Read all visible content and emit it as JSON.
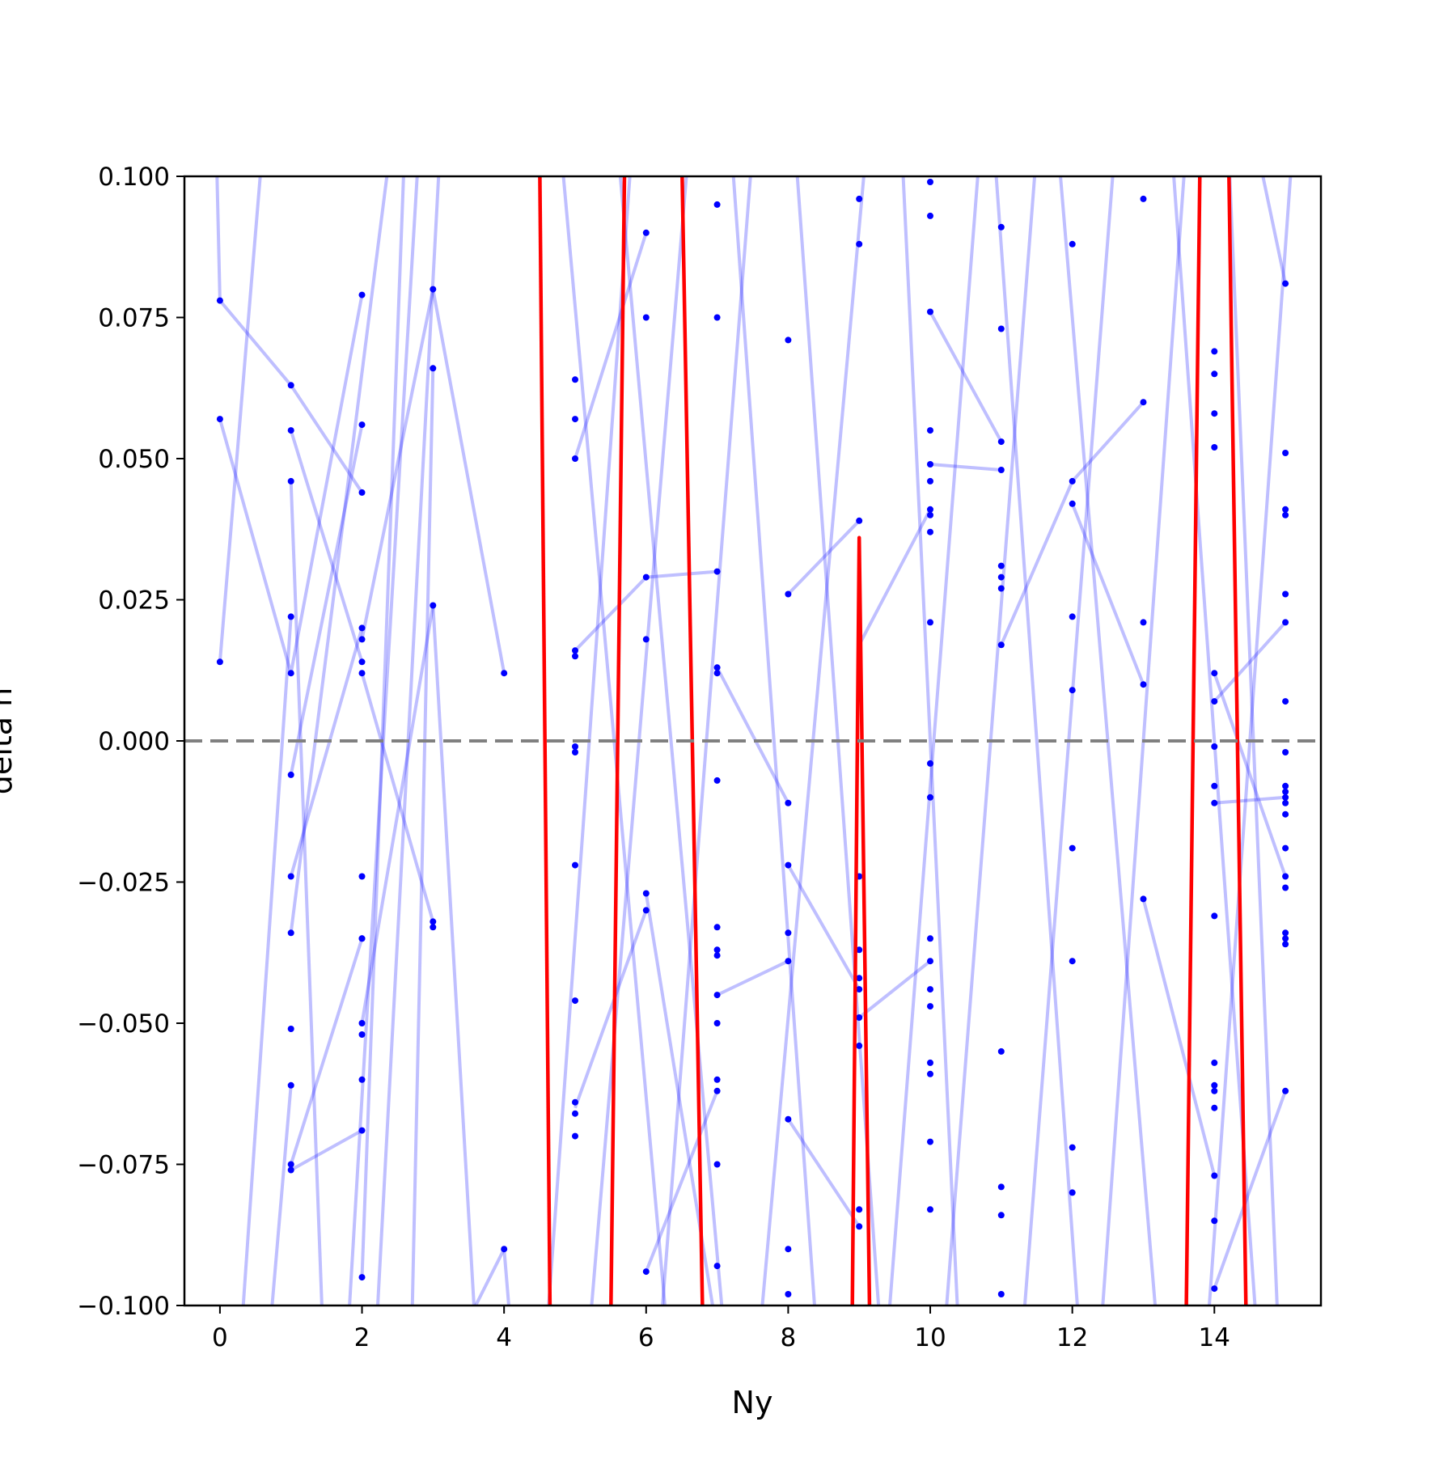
{
  "chart_data": {
    "type": "line",
    "xlabel": "Ny",
    "ylabel": "delta n",
    "xlim": [
      -0.5,
      15.5
    ],
    "ylim": [
      -0.1,
      0.1
    ],
    "x_ticks": [
      0,
      2,
      4,
      6,
      8,
      10,
      12,
      14
    ],
    "x_tick_labels": [
      "0",
      "2",
      "4",
      "6",
      "8",
      "10",
      "12",
      "14"
    ],
    "y_ticks": [
      0.1,
      0.075,
      0.05,
      0.025,
      0.0,
      -0.025,
      -0.05,
      -0.075,
      -0.1
    ],
    "y_tick_labels": [
      "0.100",
      "0.075",
      "0.050",
      "0.025",
      "0.000",
      "−0.025",
      "−0.050",
      "−0.075",
      "−0.100"
    ],
    "reference_line": {
      "y": 0.0,
      "style": "dashed",
      "color": "#808080"
    },
    "grid": false,
    "colors": {
      "points": "#0000ff",
      "lines": "#0000ff",
      "highlight": "#ff0000"
    },
    "points": [
      [
        0,
        0.078
      ],
      [
        0,
        0.057
      ],
      [
        0,
        0.014
      ],
      [
        1,
        0.063
      ],
      [
        1,
        0.055
      ],
      [
        1,
        0.046
      ],
      [
        1,
        0.022
      ],
      [
        1,
        0.012
      ],
      [
        1,
        -0.006
      ],
      [
        1,
        -0.024
      ],
      [
        1,
        -0.034
      ],
      [
        1,
        -0.051
      ],
      [
        1,
        -0.061
      ],
      [
        1,
        -0.075
      ],
      [
        1,
        -0.076
      ],
      [
        2,
        0.079
      ],
      [
        2,
        0.056
      ],
      [
        2,
        0.044
      ],
      [
        2,
        0.02
      ],
      [
        2,
        0.018
      ],
      [
        2,
        0.014
      ],
      [
        2,
        0.012
      ],
      [
        2,
        -0.024
      ],
      [
        2,
        -0.035
      ],
      [
        2,
        -0.035
      ],
      [
        2,
        -0.05
      ],
      [
        2,
        -0.052
      ],
      [
        2,
        -0.06
      ],
      [
        2,
        -0.069
      ],
      [
        2,
        -0.095
      ],
      [
        3,
        0.08
      ],
      [
        3,
        0.066
      ],
      [
        3,
        0.024
      ],
      [
        3,
        -0.032
      ],
      [
        3,
        -0.033
      ],
      [
        4,
        0.012
      ],
      [
        4,
        -0.09
      ],
      [
        5,
        0.064
      ],
      [
        5,
        0.057
      ],
      [
        5,
        0.05
      ],
      [
        5,
        0.016
      ],
      [
        5,
        0.015
      ],
      [
        5,
        -0.001
      ],
      [
        5,
        -0.002
      ],
      [
        5,
        -0.022
      ],
      [
        5,
        -0.046
      ],
      [
        5,
        -0.064
      ],
      [
        5,
        -0.066
      ],
      [
        5,
        -0.07
      ],
      [
        6,
        0.09
      ],
      [
        6,
        0.075
      ],
      [
        6,
        0.029
      ],
      [
        6,
        0.018
      ],
      [
        6,
        -0.027
      ],
      [
        6,
        -0.03
      ],
      [
        6,
        -0.094
      ],
      [
        7,
        0.095
      ],
      [
        7,
        0.075
      ],
      [
        7,
        0.03
      ],
      [
        7,
        0.013
      ],
      [
        7,
        0.012
      ],
      [
        7,
        -0.007
      ],
      [
        7,
        -0.033
      ],
      [
        7,
        -0.037
      ],
      [
        7,
        -0.038
      ],
      [
        7,
        -0.045
      ],
      [
        7,
        -0.05
      ],
      [
        7,
        -0.06
      ],
      [
        7,
        -0.062
      ],
      [
        7,
        -0.075
      ],
      [
        7,
        -0.093
      ],
      [
        8,
        0.071
      ],
      [
        8,
        0.026
      ],
      [
        8,
        -0.011
      ],
      [
        8,
        -0.022
      ],
      [
        8,
        -0.034
      ],
      [
        8,
        -0.039
      ],
      [
        8,
        -0.067
      ],
      [
        8,
        -0.09
      ],
      [
        8,
        -0.098
      ],
      [
        9,
        0.096
      ],
      [
        9,
        0.088
      ],
      [
        9,
        0.039
      ],
      [
        9,
        -0.024
      ],
      [
        9,
        -0.037
      ],
      [
        9,
        -0.042
      ],
      [
        9,
        -0.044
      ],
      [
        9,
        -0.049
      ],
      [
        9,
        -0.054
      ],
      [
        9,
        -0.083
      ],
      [
        9,
        -0.086
      ],
      [
        10,
        0.099
      ],
      [
        10,
        0.093
      ],
      [
        10,
        0.076
      ],
      [
        10,
        0.055
      ],
      [
        10,
        0.049
      ],
      [
        10,
        0.046
      ],
      [
        10,
        0.041
      ],
      [
        10,
        0.04
      ],
      [
        10,
        0.037
      ],
      [
        10,
        0.021
      ],
      [
        10,
        -0.004
      ],
      [
        10,
        -0.01
      ],
      [
        10,
        -0.035
      ],
      [
        10,
        -0.039
      ],
      [
        10,
        -0.044
      ],
      [
        10,
        -0.047
      ],
      [
        10,
        -0.057
      ],
      [
        10,
        -0.059
      ],
      [
        10,
        -0.071
      ],
      [
        10,
        -0.083
      ],
      [
        11,
        0.091
      ],
      [
        11,
        0.073
      ],
      [
        11,
        0.053
      ],
      [
        11,
        0.048
      ],
      [
        11,
        0.031
      ],
      [
        11,
        0.029
      ],
      [
        11,
        0.027
      ],
      [
        11,
        0.017
      ],
      [
        11,
        -0.055
      ],
      [
        11,
        -0.079
      ],
      [
        11,
        -0.084
      ],
      [
        11,
        -0.098
      ],
      [
        12,
        0.088
      ],
      [
        12,
        0.046
      ],
      [
        12,
        0.042
      ],
      [
        12,
        0.022
      ],
      [
        12,
        0.009
      ],
      [
        12,
        -0.019
      ],
      [
        12,
        -0.039
      ],
      [
        12,
        -0.072
      ],
      [
        12,
        -0.08
      ],
      [
        13,
        0.096
      ],
      [
        13,
        0.06
      ],
      [
        13,
        0.021
      ],
      [
        13,
        0.01
      ],
      [
        13,
        -0.028
      ],
      [
        14,
        0.069
      ],
      [
        14,
        0.065
      ],
      [
        14,
        0.058
      ],
      [
        14,
        0.052
      ],
      [
        14,
        0.012
      ],
      [
        14,
        0.007
      ],
      [
        14,
        -0.001
      ],
      [
        14,
        -0.008
      ],
      [
        14,
        -0.011
      ],
      [
        14,
        -0.031
      ],
      [
        14,
        -0.057
      ],
      [
        14,
        -0.061
      ],
      [
        14,
        -0.062
      ],
      [
        14,
        -0.065
      ],
      [
        14,
        -0.077
      ],
      [
        14,
        -0.085
      ],
      [
        14,
        -0.097
      ],
      [
        15,
        0.081
      ],
      [
        15,
        0.051
      ],
      [
        15,
        0.041
      ],
      [
        15,
        0.04
      ],
      [
        15,
        0.026
      ],
      [
        15,
        0.021
      ],
      [
        15,
        0.007
      ],
      [
        15,
        -0.002
      ],
      [
        15,
        -0.008
      ],
      [
        15,
        -0.009
      ],
      [
        15,
        -0.01
      ],
      [
        15,
        -0.011
      ],
      [
        15,
        -0.013
      ],
      [
        15,
        -0.019
      ],
      [
        15,
        -0.024
      ],
      [
        15,
        -0.026
      ],
      [
        15,
        -0.034
      ],
      [
        15,
        -0.035
      ],
      [
        15,
        -0.036
      ],
      [
        15,
        -0.062
      ]
    ],
    "series": [
      {
        "x": [
          0,
          1,
          2
        ],
        "y": [
          0.078,
          0.063,
          0.044
        ]
      },
      {
        "x": [
          0,
          1,
          2
        ],
        "y": [
          0.057,
          0.012,
          0.079
        ]
      },
      {
        "x": [
          0,
          0.6
        ],
        "y": [
          0.014,
          0.105
        ]
      },
      {
        "x": [
          -0.05,
          0
        ],
        "y": [
          0.105,
          0.078
        ]
      },
      {
        "x": [
          1,
          2
        ],
        "y": [
          0.055,
          0.014
        ]
      },
      {
        "x": [
          1,
          2
        ],
        "y": [
          -0.006,
          0.056
        ]
      },
      {
        "x": [
          1,
          2
        ],
        "y": [
          -0.024,
          0.02
        ]
      },
      {
        "x": [
          1,
          2
        ],
        "y": [
          -0.076,
          -0.069
        ]
      },
      {
        "x": [
          1,
          2
        ],
        "y": [
          -0.075,
          -0.035
        ]
      },
      {
        "x": [
          1,
          1.45
        ],
        "y": [
          0.046,
          -0.105
        ]
      },
      {
        "x": [
          1,
          0.7
        ],
        "y": [
          -0.061,
          -0.105
        ]
      },
      {
        "x": [
          2,
          3
        ],
        "y": [
          0.012,
          -0.032
        ]
      },
      {
        "x": [
          2,
          3
        ],
        "y": [
          0.018,
          0.08
        ]
      },
      {
        "x": [
          3,
          3.6
        ],
        "y": [
          0.024,
          -0.105
        ]
      },
      {
        "x": [
          2,
          3
        ],
        "y": [
          -0.05,
          0.024
        ]
      },
      {
        "x": [
          3,
          4
        ],
        "y": [
          0.08,
          0.012
        ]
      },
      {
        "x": [
          3,
          2.7
        ],
        "y": [
          0.066,
          -0.105
        ]
      },
      {
        "x": [
          4,
          3.4
        ],
        "y": [
          -0.09,
          -0.105
        ]
      },
      {
        "x": [
          4,
          4.1
        ],
        "y": [
          -0.09,
          -0.105
        ]
      },
      {
        "x": [
          5,
          6
        ],
        "y": [
          0.016,
          0.029
        ]
      },
      {
        "x": [
          6,
          7
        ],
        "y": [
          0.029,
          0.03
        ]
      },
      {
        "x": [
          5,
          6
        ],
        "y": [
          0.05,
          0.09
        ]
      },
      {
        "x": [
          6,
          7
        ],
        "y": [
          -0.027,
          -0.105
        ]
      },
      {
        "x": [
          5,
          6
        ],
        "y": [
          -0.065,
          -0.03
        ]
      },
      {
        "x": [
          6,
          7
        ],
        "y": [
          -0.094,
          -0.062
        ]
      },
      {
        "x": [
          7,
          8
        ],
        "y": [
          0.013,
          -0.011
        ]
      },
      {
        "x": [
          7,
          8
        ],
        "y": [
          -0.045,
          -0.039
        ]
      },
      {
        "x": [
          8,
          9
        ],
        "y": [
          -0.022,
          -0.044
        ]
      },
      {
        "x": [
          8,
          9
        ],
        "y": [
          0.026,
          0.039
        ]
      },
      {
        "x": [
          8,
          9
        ],
        "y": [
          -0.067,
          -0.086
        ]
      },
      {
        "x": [
          9,
          10
        ],
        "y": [
          -0.049,
          -0.039
        ]
      },
      {
        "x": [
          9,
          10
        ],
        "y": [
          0.017,
          0.041
        ]
      },
      {
        "x": [
          10,
          11
        ],
        "y": [
          0.049,
          0.048
        ]
      },
      {
        "x": [
          10,
          11
        ],
        "y": [
          0.076,
          0.053
        ]
      },
      {
        "x": [
          11,
          12
        ],
        "y": [
          0.017,
          0.046
        ]
      },
      {
        "x": [
          12,
          13
        ],
        "y": [
          0.042,
          0.01
        ]
      },
      {
        "x": [
          12,
          13
        ],
        "y": [
          0.046,
          0.06
        ]
      },
      {
        "x": [
          13,
          14
        ],
        "y": [
          -0.028,
          -0.077
        ]
      },
      {
        "x": [
          14,
          15
        ],
        "y": [
          -0.011,
          -0.01
        ]
      },
      {
        "x": [
          14,
          15
        ],
        "y": [
          0.007,
          0.021
        ]
      },
      {
        "x": [
          14,
          15
        ],
        "y": [
          -0.097,
          -0.062
        ]
      },
      {
        "x": [
          14,
          15
        ],
        "y": [
          0.012,
          -0.024
        ]
      },
      {
        "x": [
          15,
          14.6
        ],
        "y": [
          0.081,
          0.105
        ]
      },
      {
        "x": [
          2,
          2.6
        ],
        "y": [
          -0.095,
          0.105
        ]
      },
      {
        "x": [
          1,
          2.4
        ],
        "y": [
          -0.034,
          0.105
        ]
      },
      {
        "x": [
          0.3,
          1
        ],
        "y": [
          -0.105,
          0.022
        ]
      },
      {
        "x": [
          1.8,
          2.8
        ],
        "y": [
          -0.105,
          0.105
        ]
      },
      {
        "x": [
          2.2,
          3.1
        ],
        "y": [
          -0.105,
          0.105
        ]
      },
      {
        "x": [
          4.6,
          5.8
        ],
        "y": [
          -0.105,
          0.105
        ]
      },
      {
        "x": [
          4.8,
          6.3
        ],
        "y": [
          0.105,
          -0.105
        ]
      },
      {
        "x": [
          5.2,
          6.6
        ],
        "y": [
          -0.105,
          0.105
        ]
      },
      {
        "x": [
          5.6,
          7.1
        ],
        "y": [
          0.105,
          -0.105
        ]
      },
      {
        "x": [
          6.2,
          7.5
        ],
        "y": [
          -0.105,
          0.105
        ]
      },
      {
        "x": [
          7.2,
          8.4
        ],
        "y": [
          0.105,
          -0.105
        ]
      },
      {
        "x": [
          7.6,
          9.1
        ],
        "y": [
          -0.105,
          0.105
        ]
      },
      {
        "x": [
          8.1,
          9.3
        ],
        "y": [
          0.105,
          -0.105
        ]
      },
      {
        "x": [
          9.4,
          10.7
        ],
        "y": [
          -0.105,
          0.105
        ]
      },
      {
        "x": [
          9.6,
          10.4
        ],
        "y": [
          0.105,
          -0.105
        ]
      },
      {
        "x": [
          10.2,
          11.5
        ],
        "y": [
          -0.105,
          0.105
        ]
      },
      {
        "x": [
          10.9,
          12.1
        ],
        "y": [
          0.105,
          -0.105
        ]
      },
      {
        "x": [
          11.3,
          12.6
        ],
        "y": [
          -0.105,
          0.105
        ]
      },
      {
        "x": [
          11.8,
          13.2
        ],
        "y": [
          0.105,
          -0.105
        ]
      },
      {
        "x": [
          12.4,
          13.6
        ],
        "y": [
          -0.105,
          0.105
        ]
      },
      {
        "x": [
          13.4,
          14.6
        ],
        "y": [
          0.105,
          -0.105
        ]
      },
      {
        "x": [
          13.9,
          15.1
        ],
        "y": [
          -0.105,
          0.105
        ]
      },
      {
        "x": [
          14.2,
          14.9
        ],
        "y": [
          0.105,
          -0.105
        ]
      }
    ],
    "highlight_series": [
      {
        "x": [
          4.5,
          4.65
        ],
        "y": [
          0.105,
          -0.105
        ]
      },
      {
        "x": [
          5.5,
          5.7
        ],
        "y": [
          -0.105,
          0.105
        ]
      },
      {
        "x": [
          6.5,
          6.8
        ],
        "y": [
          0.105,
          -0.105
        ]
      },
      {
        "x": [
          8.9,
          9,
          9.15
        ],
        "y": [
          -0.105,
          0.036,
          -0.105
        ]
      },
      {
        "x": [
          13.6,
          13.8
        ],
        "y": [
          -0.105,
          0.105
        ]
      },
      {
        "x": [
          14.2,
          14.45
        ],
        "y": [
          0.105,
          -0.105
        ]
      }
    ]
  }
}
